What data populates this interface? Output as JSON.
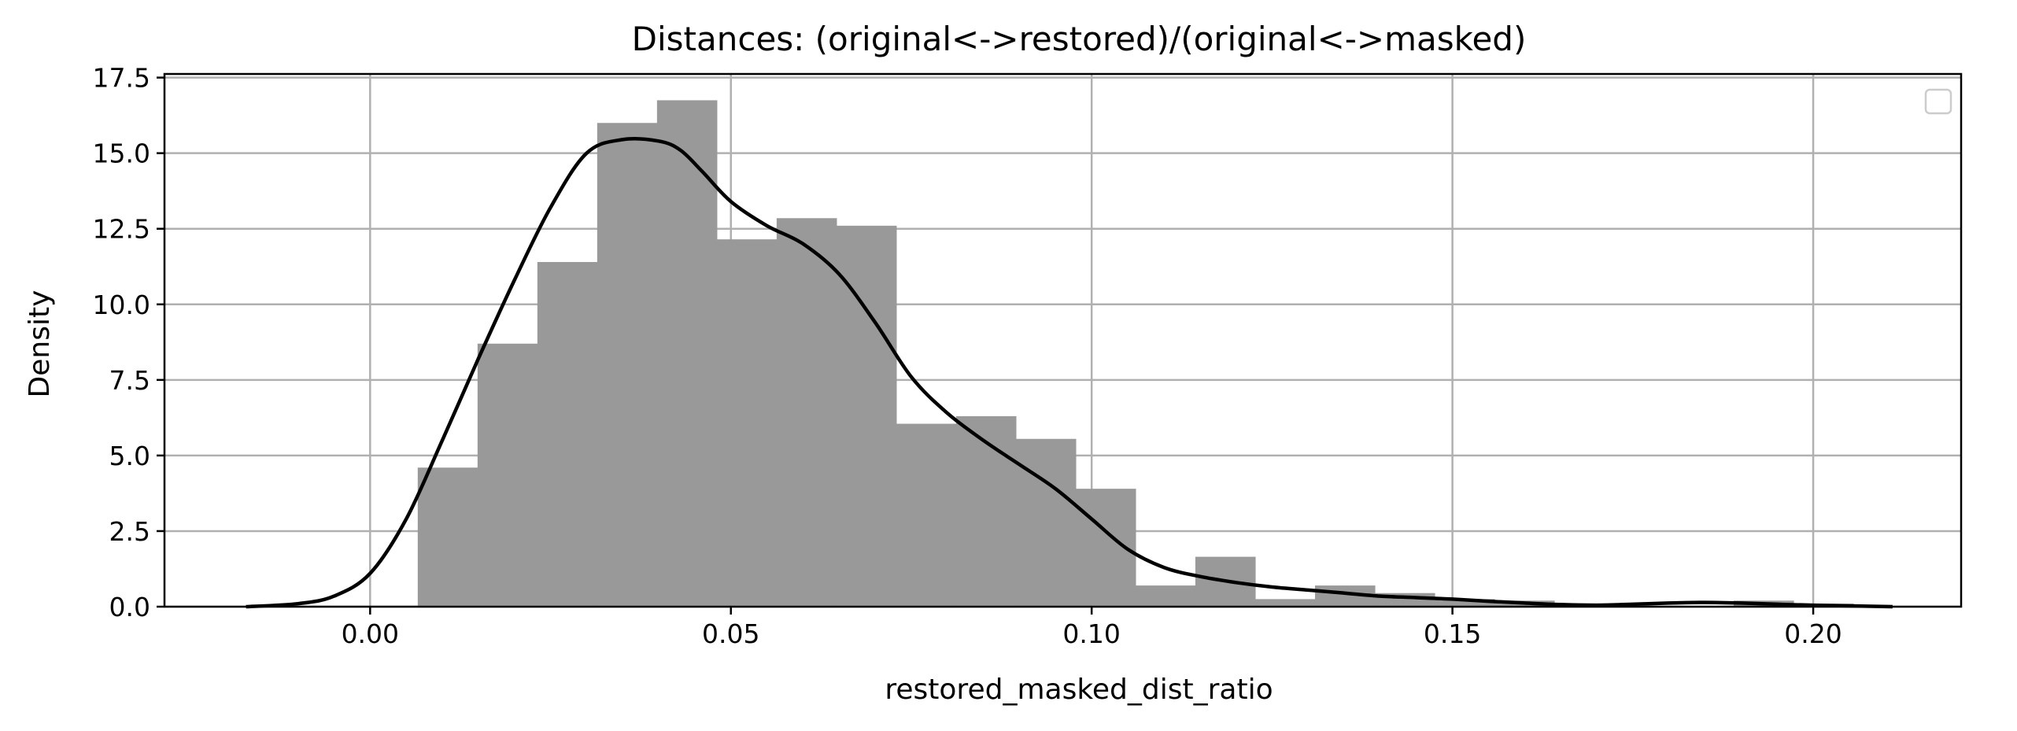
{
  "chart_data": {
    "type": "bar",
    "title": "Distances: (original<->restored)/(original<->masked)",
    "xlabel": "restored_masked_dist_ratio",
    "ylabel": "Density",
    "xlim": [
      -0.0285,
      0.2205
    ],
    "ylim": [
      0,
      17.62
    ],
    "xticks": [
      0.0,
      0.05,
      0.1,
      0.15,
      0.2
    ],
    "xtick_labels": [
      "0.00",
      "0.05",
      "0.10",
      "0.15",
      "0.20"
    ],
    "yticks": [
      0.0,
      2.5,
      5.0,
      7.5,
      10.0,
      12.5,
      15.0,
      17.5
    ],
    "ytick_labels": [
      "0.0",
      "2.5",
      "5.0",
      "7.5",
      "10.0",
      "12.5",
      "15.0",
      "17.5"
    ],
    "grid": true,
    "legend": "top-right",
    "legend_entries": [],
    "histogram": {
      "bin_start": 0.0066,
      "bin_width": 0.00829,
      "densities": [
        4.6,
        8.7,
        11.4,
        16.0,
        16.75,
        12.15,
        12.85,
        12.6,
        6.05,
        6.3,
        5.55,
        3.9,
        0.7,
        1.65,
        0.25,
        0.7,
        0.45,
        0.25,
        0.2,
        0.0,
        0.0,
        0.0,
        0.2,
        0.1
      ]
    },
    "kde": {
      "x": [
        -0.0172,
        -0.01,
        -0.005,
        0.0,
        0.005,
        0.01,
        0.015,
        0.02,
        0.025,
        0.03,
        0.035,
        0.04,
        0.043,
        0.046,
        0.05,
        0.055,
        0.06,
        0.065,
        0.07,
        0.075,
        0.08,
        0.085,
        0.09,
        0.095,
        0.1,
        0.105,
        0.11,
        0.115,
        0.12,
        0.125,
        0.13,
        0.135,
        0.14,
        0.145,
        0.15,
        0.155,
        0.16,
        0.165,
        0.17,
        0.175,
        0.18,
        0.185,
        0.19,
        0.195,
        0.2,
        0.211
      ],
      "y": [
        0.0,
        0.1,
        0.35,
        1.1,
        2.9,
        5.5,
        8.2,
        10.8,
        13.2,
        15.0,
        15.45,
        15.4,
        15.1,
        14.4,
        13.4,
        12.6,
        12.0,
        11.0,
        9.4,
        7.6,
        6.4,
        5.5,
        4.7,
        3.9,
        2.9,
        1.9,
        1.3,
        1.0,
        0.8,
        0.65,
        0.55,
        0.45,
        0.35,
        0.3,
        0.25,
        0.18,
        0.12,
        0.07,
        0.05,
        0.08,
        0.12,
        0.14,
        0.12,
        0.08,
        0.05,
        0.0
      ]
    }
  }
}
